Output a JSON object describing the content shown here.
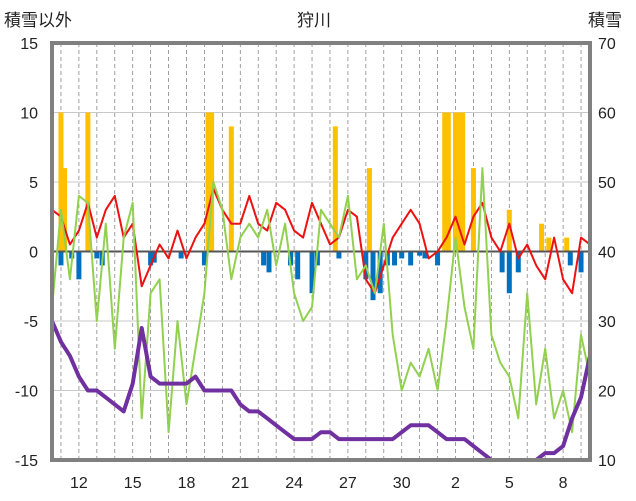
{
  "chart_data": {
    "type": "combo",
    "title": "狩川",
    "ylabel_left": "積雪以外",
    "ylabel_right": "積雪",
    "ylim_left": [
      -15,
      15
    ],
    "ylim_right": [
      10,
      70
    ],
    "yticks_left": [
      "15",
      "10",
      "5",
      "0",
      "-5",
      "-10",
      "-15"
    ],
    "yticks_right": [
      "70",
      "60",
      "50",
      "40",
      "30",
      "20",
      "10"
    ],
    "xticks": [
      {
        "day": 12,
        "label": "12"
      },
      {
        "day": 15,
        "label": "15"
      },
      {
        "day": 18,
        "label": "18"
      },
      {
        "day": 21,
        "label": "21"
      },
      {
        "day": 24,
        "label": "24"
      },
      {
        "day": 27,
        "label": "27"
      },
      {
        "day": 30,
        "label": "30"
      },
      {
        "day": 33,
        "label": "2"
      },
      {
        "day": 36,
        "label": "5"
      },
      {
        "day": 39,
        "label": "8"
      }
    ],
    "xlim": [
      10.5,
      40.5
    ],
    "grid": true,
    "colors": {
      "red": "#ee1111",
      "green": "#92d050",
      "purple": "#7030a0",
      "orange": "#ffc000",
      "blue": "#0070c0",
      "frame": "#808080"
    },
    "series": [
      {
        "color": "red",
        "axis": "left",
        "kind": "line",
        "x": [
          10.5,
          11,
          11.5,
          12,
          12.5,
          13,
          13.5,
          14,
          14.5,
          15,
          15.5,
          16,
          16.5,
          17,
          17.5,
          18,
          18.5,
          19,
          19.5,
          20,
          20.5,
          21,
          21.5,
          22,
          22.5,
          23,
          23.5,
          24,
          24.5,
          25,
          25.5,
          26,
          26.5,
          27,
          27.5,
          28,
          28.5,
          29,
          29.5,
          30,
          30.5,
          31,
          31.5,
          32,
          32.5,
          33,
          33.5,
          34,
          34.5,
          35,
          35.5,
          36,
          36.5,
          37,
          37.5,
          38,
          38.5,
          39,
          39.5,
          40,
          40.5
        ],
        "values": [
          3,
          2.5,
          0.5,
          1.5,
          3.5,
          1,
          3,
          4,
          1,
          2,
          -2.5,
          -1,
          0.5,
          -0.5,
          1.5,
          -0.5,
          1,
          2,
          4.5,
          3,
          2,
          2,
          4,
          2,
          1.5,
          3.5,
          3,
          1.5,
          1,
          3.5,
          2,
          0.5,
          1,
          3,
          2.5,
          -2,
          -3,
          -1,
          1,
          2,
          3,
          2,
          -0.5,
          0,
          1,
          2.5,
          0.5,
          2.5,
          3.5,
          1,
          0,
          2,
          -0.5,
          0.5,
          -1,
          -2,
          1,
          -2,
          -3,
          1,
          0.5
        ]
      },
      {
        "color": "green",
        "axis": "left",
        "kind": "line",
        "x": [
          10.5,
          11,
          11.5,
          12,
          12.5,
          13,
          13.5,
          14,
          14.5,
          15,
          15.5,
          16,
          16.5,
          17,
          17.5,
          18,
          18.5,
          19,
          19.5,
          20,
          20.5,
          21,
          21.5,
          22,
          22.5,
          23,
          23.5,
          24,
          24.5,
          25,
          25.5,
          26,
          26.5,
          27,
          27.5,
          28,
          28.5,
          29,
          29.5,
          30,
          30.5,
          31,
          31.5,
          32,
          32.5,
          33,
          33.5,
          34,
          34.5,
          35,
          35.5,
          36,
          36.5,
          37,
          37.5,
          38,
          38.5,
          39,
          39.5,
          40,
          40.5
        ],
        "values": [
          -4,
          3,
          -2,
          4,
          3.5,
          -5,
          2,
          -7,
          1,
          3.5,
          -12,
          -3,
          -2,
          -13,
          -5,
          -11,
          -7,
          -3,
          5,
          3,
          -2,
          1,
          2,
          1,
          3,
          -1,
          2,
          -3,
          -5,
          -4,
          3,
          2,
          1,
          4,
          -2,
          -1,
          -3,
          2,
          -6,
          -10,
          -8,
          -9,
          -7,
          -10,
          -5,
          1,
          -4,
          -7,
          6,
          -6,
          -8,
          -9,
          -12,
          -3,
          -11,
          -7,
          -12,
          -10,
          -13,
          -6,
          -9
        ]
      },
      {
        "color": "purple",
        "axis": "right",
        "kind": "line",
        "x": [
          10.5,
          11,
          11.5,
          12,
          12.5,
          13,
          13.5,
          14,
          14.5,
          15,
          15.5,
          16,
          16.5,
          17,
          17.5,
          18,
          18.5,
          19,
          19.5,
          20,
          20.5,
          21,
          21.5,
          22,
          22.5,
          23,
          23.5,
          24,
          24.5,
          25,
          25.5,
          26,
          26.5,
          27,
          27.5,
          28,
          28.5,
          29,
          29.5,
          30,
          30.5,
          31,
          31.5,
          32,
          32.5,
          33,
          33.5,
          34,
          34.5,
          35,
          35.5,
          36,
          36.5,
          37,
          37.5,
          38,
          38.5,
          39,
          39.5,
          40,
          40.5
        ],
        "values": [
          30,
          27,
          25,
          22,
          20,
          20,
          19,
          18,
          17,
          21,
          29,
          22,
          21,
          21,
          21,
          21,
          22,
          20,
          20,
          20,
          20,
          18,
          17,
          17,
          16,
          15,
          14,
          13,
          13,
          13,
          14,
          14,
          13,
          13,
          13,
          13,
          13,
          13,
          13,
          14,
          15,
          15,
          15,
          14,
          13,
          13,
          13,
          12,
          11,
          10,
          10,
          10,
          10,
          10,
          10,
          11,
          11,
          12,
          16,
          19,
          25
        ]
      },
      {
        "color": "orange",
        "axis": "left",
        "kind": "bars",
        "x": [
          11,
          11.2,
          12.5,
          19.2,
          19.4,
          20.5,
          26.3,
          28.2,
          32.4,
          32.6,
          33,
          33.2,
          33.4,
          34,
          36,
          37.8,
          38.2,
          39.2
        ],
        "values": [
          10,
          6,
          10,
          10,
          10,
          9,
          9,
          6,
          10,
          10,
          10,
          10,
          10,
          6,
          3,
          2,
          1,
          1
        ]
      },
      {
        "color": "blue",
        "axis": "left",
        "kind": "bars",
        "x": [
          11,
          11.6,
          12,
          13,
          13.3,
          16,
          16.2,
          17.7,
          19,
          22.3,
          22.6,
          23.8,
          24.2,
          25,
          25.3,
          26.5,
          28,
          28.4,
          28.8,
          29.2,
          29.6,
          30,
          30.5,
          31,
          31.3,
          32,
          35.6,
          36,
          36.5,
          39.4,
          40
        ],
        "values": [
          -1,
          -0.5,
          -2,
          -0.5,
          -1,
          -1,
          -0.8,
          -0.5,
          -1,
          -1,
          -1.5,
          -1,
          -2,
          -3,
          -1,
          -0.5,
          -2,
          -3.5,
          -3,
          -1,
          -1,
          -0.5,
          -1,
          -0.3,
          -0.5,
          -1,
          -1.5,
          -3,
          -1.5,
          -1,
          -1.5
        ]
      }
    ]
  }
}
